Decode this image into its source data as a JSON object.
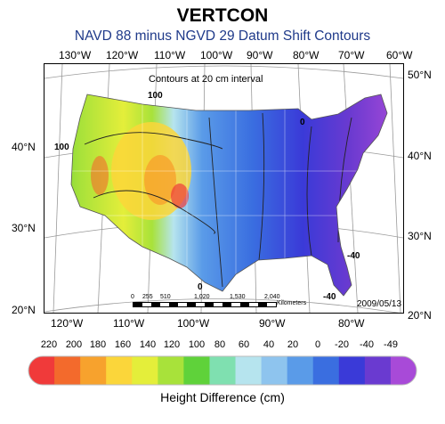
{
  "title": "VERTCON",
  "subtitle": "NAVD 88 minus NGVD 29 Datum Shift Contours",
  "interval_note": "Contours at 20 cm interval",
  "date": "2009/05/13",
  "top_lon_labels": [
    "130°W",
    "120°W",
    "110°W",
    "100°W",
    "90°W",
    "80°W",
    "70°W",
    "60°W"
  ],
  "bottom_lon_labels": [
    "120°W",
    "110°W",
    "100°W",
    "90°W",
    "80°W"
  ],
  "left_lat_labels": [
    "40°N",
    "30°N",
    "20°N"
  ],
  "right_lat_labels": [
    "50°N",
    "40°N",
    "30°N",
    "20°N"
  ],
  "contour_labels": [
    "100",
    "100",
    "0",
    "0",
    "-40",
    "-40"
  ],
  "scale_bar": {
    "ticks": [
      "0",
      "255",
      "510",
      "1,020",
      "1,530",
      "2,040"
    ],
    "unit": "Kilometers"
  },
  "legend": {
    "title": "Height Difference (cm)",
    "ticks": [
      "220",
      "200",
      "180",
      "160",
      "140",
      "120",
      "100",
      "80",
      "60",
      "40",
      "20",
      "0",
      "-20",
      "-40",
      "-49"
    ],
    "colors": [
      "#f03a3a",
      "#f36a2c",
      "#f7a22d",
      "#fbd63a",
      "#e4ee3a",
      "#a8e23a",
      "#5fd23a",
      "#7fe0b0",
      "#b6e4ee",
      "#8ec4ee",
      "#5a9be8",
      "#3a6ee0",
      "#3a3ad8",
      "#6a3ad0",
      "#a84ad8"
    ]
  }
}
